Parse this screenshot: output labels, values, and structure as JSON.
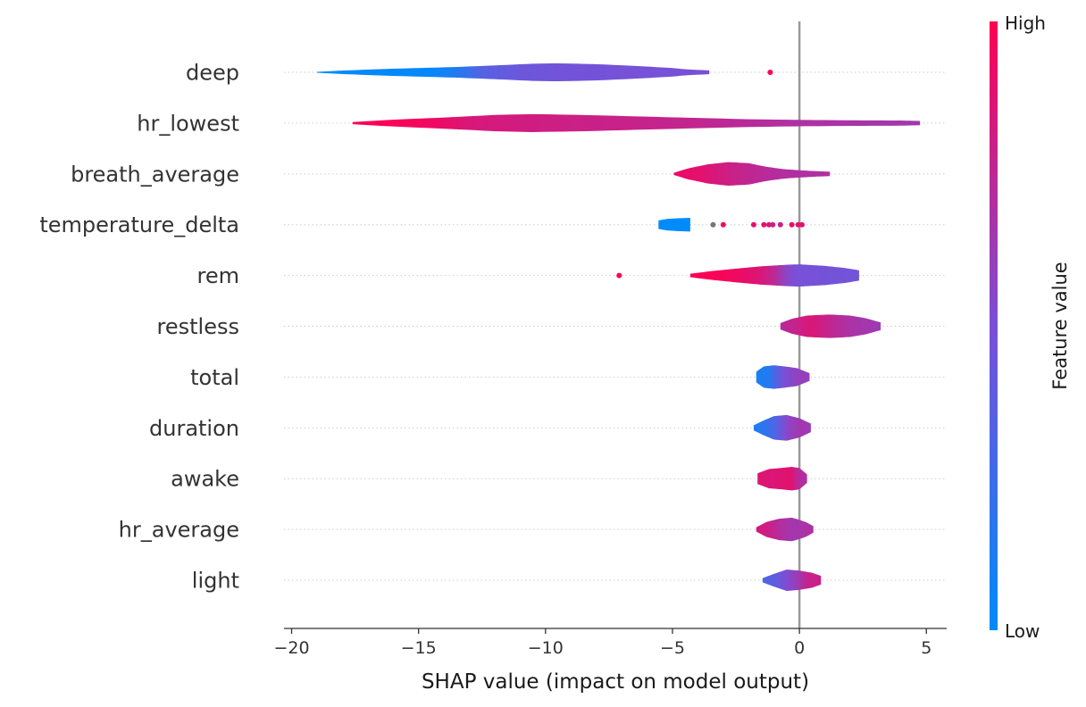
{
  "chart_data": {
    "type": "violin",
    "xlabel": "SHAP value (impact on model output)",
    "xlim": [
      -20.3,
      5.8
    ],
    "xticks": [
      -20,
      -15,
      -10,
      -5,
      0,
      5
    ],
    "xtick_labels": [
      "−20",
      "−15",
      "−10",
      "−5",
      "0",
      "5"
    ],
    "colorbar": {
      "title": "Feature value",
      "high_label": "High",
      "low_label": "Low",
      "low_color": "#008bfb",
      "mid_color": "#7b4fd6",
      "high_color": "#ff0052"
    },
    "features": [
      {
        "name": "deep",
        "min": -19.0,
        "max": -3.55,
        "profile": [
          [
            -19.0,
            0.02
          ],
          [
            -18.0,
            0.08
          ],
          [
            -16.5,
            0.15
          ],
          [
            -15,
            0.2
          ],
          [
            -13.5,
            0.25
          ],
          [
            -12,
            0.32
          ],
          [
            -10.5,
            0.4
          ],
          [
            -9.5,
            0.42
          ],
          [
            -8,
            0.38
          ],
          [
            -6.5,
            0.3
          ],
          [
            -5,
            0.2
          ],
          [
            -4.5,
            0.14
          ],
          [
            -3.55,
            0.09
          ]
        ],
        "colors": [
          [
            -19.0,
            0.0
          ],
          [
            -14.5,
            0.03
          ],
          [
            -13.5,
            0.12
          ],
          [
            -12.5,
            0.35
          ],
          [
            -11,
            0.44
          ],
          [
            -9,
            0.47
          ],
          [
            -5,
            0.48
          ],
          [
            -3.55,
            0.48
          ]
        ],
        "outliers": [
          {
            "x": -1.15,
            "c": 1.0
          }
        ]
      },
      {
        "name": "hr_lowest",
        "min": -17.6,
        "max": 4.75,
        "profile": [
          [
            -17.6,
            0.05
          ],
          [
            -16,
            0.16
          ],
          [
            -14,
            0.26
          ],
          [
            -12,
            0.38
          ],
          [
            -10.5,
            0.42
          ],
          [
            -8.5,
            0.38
          ],
          [
            -6,
            0.3
          ],
          [
            -4,
            0.24
          ],
          [
            -2,
            0.18
          ],
          [
            0,
            0.15
          ],
          [
            2,
            0.13
          ],
          [
            4,
            0.12
          ],
          [
            4.75,
            0.1
          ]
        ],
        "colors": [
          [
            -17.6,
            1.0
          ],
          [
            -14.5,
            0.95
          ],
          [
            -13,
            0.85
          ],
          [
            -9,
            0.8
          ],
          [
            -4,
            0.77
          ],
          [
            -2,
            0.73
          ],
          [
            0,
            0.69
          ],
          [
            4.75,
            0.65
          ]
        ],
        "outliers": []
      },
      {
        "name": "breath_average",
        "min": -4.95,
        "max": 1.2,
        "profile": [
          [
            -4.95,
            0.05
          ],
          [
            -4.4,
            0.25
          ],
          [
            -3.6,
            0.45
          ],
          [
            -2.8,
            0.55
          ],
          [
            -2,
            0.5
          ],
          [
            -1.3,
            0.33
          ],
          [
            -0.6,
            0.22
          ],
          [
            0,
            0.17
          ],
          [
            0.6,
            0.13
          ],
          [
            1.2,
            0.1
          ]
        ],
        "colors": [
          [
            -4.95,
            0.93
          ],
          [
            -4,
            0.9
          ],
          [
            -3,
            0.82
          ],
          [
            -2,
            0.76
          ],
          [
            -1,
            0.72
          ],
          [
            0,
            0.7
          ],
          [
            1.2,
            0.7
          ]
        ],
        "outliers": []
      },
      {
        "name": "temperature_delta",
        "min": -5.55,
        "max": -4.3,
        "profile": [
          [
            -5.55,
            0.2
          ],
          [
            -5.2,
            0.27
          ],
          [
            -4.8,
            0.3
          ],
          [
            -4.3,
            0.32
          ]
        ],
        "colors": [
          [
            -5.55,
            0.0
          ],
          [
            -4.3,
            0.0
          ]
        ],
        "outliers": [
          {
            "x": -3.4,
            "c": null
          },
          {
            "x": -3.0,
            "c": 0.95
          },
          {
            "x": -1.8,
            "c": 0.9
          },
          {
            "x": -1.4,
            "c": 0.9
          },
          {
            "x": -1.2,
            "c": 0.85
          },
          {
            "x": -1.05,
            "c": 0.8
          },
          {
            "x": -0.75,
            "c": 0.8
          },
          {
            "x": -0.3,
            "c": 0.95
          },
          {
            "x": -0.05,
            "c": 0.9
          },
          {
            "x": 0.1,
            "c": 0.9
          }
        ]
      },
      {
        "name": "rem",
        "min": -4.3,
        "max": 2.35,
        "profile": [
          [
            -4.3,
            0.08
          ],
          [
            -3.5,
            0.2
          ],
          [
            -2.5,
            0.32
          ],
          [
            -1.5,
            0.43
          ],
          [
            -0.5,
            0.5
          ],
          [
            0,
            0.52
          ],
          [
            1,
            0.45
          ],
          [
            1.8,
            0.35
          ],
          [
            2.35,
            0.24
          ]
        ],
        "colors": [
          [
            -4.3,
            1.0
          ],
          [
            -3,
            0.97
          ],
          [
            -2.2,
            0.92
          ],
          [
            -1.5,
            0.85
          ],
          [
            -1,
            0.75
          ],
          [
            -0.5,
            0.55
          ],
          [
            0,
            0.48
          ],
          [
            2.35,
            0.46
          ]
        ],
        "outliers": [
          {
            "x": -7.1,
            "c": 1.0
          }
        ]
      },
      {
        "name": "restless",
        "min": -0.75,
        "max": 3.2,
        "profile": [
          [
            -0.75,
            0.15
          ],
          [
            -0.3,
            0.35
          ],
          [
            0.3,
            0.5
          ],
          [
            1.2,
            0.55
          ],
          [
            2,
            0.5
          ],
          [
            2.6,
            0.38
          ],
          [
            3.2,
            0.18
          ]
        ],
        "colors": [
          [
            -0.75,
            0.72
          ],
          [
            0,
            0.8
          ],
          [
            0.5,
            0.86
          ],
          [
            1.3,
            0.75
          ],
          [
            2,
            0.68
          ],
          [
            3.2,
            0.63
          ]
        ],
        "outliers": []
      },
      {
        "name": "total",
        "min": -1.7,
        "max": 0.4,
        "profile": [
          [
            -1.7,
            0.25
          ],
          [
            -1.4,
            0.5
          ],
          [
            -1.0,
            0.55
          ],
          [
            -0.6,
            0.5
          ],
          [
            -0.1,
            0.42
          ],
          [
            0.4,
            0.18
          ]
        ],
        "colors": [
          [
            -1.7,
            0.1
          ],
          [
            -1.2,
            0.15
          ],
          [
            -0.9,
            0.35
          ],
          [
            -0.6,
            0.5
          ],
          [
            0,
            0.6
          ],
          [
            0.4,
            0.6
          ]
        ],
        "outliers": []
      },
      {
        "name": "duration",
        "min": -1.8,
        "max": 0.45,
        "profile": [
          [
            -1.8,
            0.12
          ],
          [
            -1.4,
            0.35
          ],
          [
            -1.0,
            0.55
          ],
          [
            -0.5,
            0.6
          ],
          [
            0,
            0.45
          ],
          [
            0.45,
            0.2
          ]
        ],
        "colors": [
          [
            -1.8,
            0.1
          ],
          [
            -1.3,
            0.2
          ],
          [
            -0.9,
            0.35
          ],
          [
            -0.5,
            0.55
          ],
          [
            0,
            0.65
          ],
          [
            0.45,
            0.62
          ]
        ],
        "outliers": []
      },
      {
        "name": "awake",
        "min": -1.65,
        "max": 0.3,
        "profile": [
          [
            -1.65,
            0.25
          ],
          [
            -1.2,
            0.45
          ],
          [
            -0.7,
            0.5
          ],
          [
            -0.3,
            0.55
          ],
          [
            0,
            0.5
          ],
          [
            0.3,
            0.2
          ]
        ],
        "colors": [
          [
            -1.65,
            0.88
          ],
          [
            -1,
            0.86
          ],
          [
            -0.4,
            0.9
          ],
          [
            0,
            0.72
          ],
          [
            0.3,
            0.7
          ]
        ],
        "outliers": []
      },
      {
        "name": "hr_average",
        "min": -1.7,
        "max": 0.55,
        "profile": [
          [
            -1.7,
            0.1
          ],
          [
            -1.3,
            0.35
          ],
          [
            -0.8,
            0.5
          ],
          [
            -0.3,
            0.55
          ],
          [
            0,
            0.45
          ],
          [
            0.3,
            0.32
          ],
          [
            0.55,
            0.15
          ]
        ],
        "colors": [
          [
            -1.7,
            0.85
          ],
          [
            -1.2,
            0.8
          ],
          [
            -0.8,
            0.72
          ],
          [
            -0.3,
            0.65
          ],
          [
            0.2,
            0.68
          ],
          [
            0.55,
            0.7
          ]
        ],
        "outliers": []
      },
      {
        "name": "light",
        "min": -1.45,
        "max": 0.85,
        "profile": [
          [
            -1.45,
            0.1
          ],
          [
            -1.0,
            0.3
          ],
          [
            -0.5,
            0.5
          ],
          [
            0,
            0.45
          ],
          [
            0.5,
            0.35
          ],
          [
            0.85,
            0.2
          ]
        ],
        "colors": [
          [
            -1.45,
            0.3
          ],
          [
            -1.0,
            0.38
          ],
          [
            -0.5,
            0.52
          ],
          [
            -0.1,
            0.62
          ],
          [
            0.3,
            0.78
          ],
          [
            0.85,
            0.8
          ]
        ],
        "outliers": []
      }
    ]
  }
}
